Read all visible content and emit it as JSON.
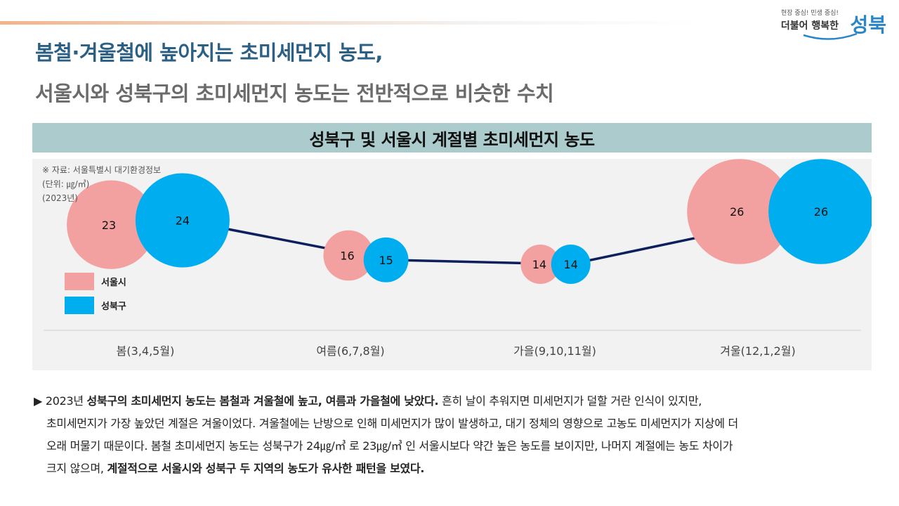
{
  "header": {
    "slogan": "현장 중심! 민생 중심!",
    "sub": "더불어 행복한",
    "logo": "성북",
    "headline1": "봄철·겨울철에 높아지는 초미세먼지 농도,",
    "headline2": "서울시와 성북구의 초미세먼지 농도는 전반적으로 비슷한 수치",
    "colors": {
      "headline1": "#2c5f84",
      "headline2": "#6b6b6b",
      "title_bar": "#abcbcc"
    }
  },
  "chart_title": "성북구 및 서울시 계절별 초미세먼지 농도",
  "source": {
    "line1": "※ 자료: 서울특별시 대기환경정보",
    "line2": "(단위: ㎍/㎥)",
    "line3": "(2023년)"
  },
  "chart_data": {
    "type": "scatter",
    "title": "성북구 및 서울시 계절별 초미세먼지 농도",
    "categories": [
      "봄(3,4,5월)",
      "여름(6,7,8월)",
      "가을(9,10,11월)",
      "겨울(12,1,2월)"
    ],
    "series": [
      {
        "name": "서울시",
        "values": [
          23,
          16,
          14,
          26
        ],
        "color": "#f2a0a0"
      },
      {
        "name": "성북구",
        "values": [
          24,
          15,
          14,
          26
        ],
        "color": "#00aeef"
      }
    ],
    "connector_color": "#0d1f5c",
    "legend": "left"
  },
  "body": {
    "l1_marker": "▶",
    "l1_a": "2023년 ",
    "l1_b": "성북구의 초미세먼지 농도는 봄철과 겨울철에 높고, 여름과 가을철에 낮았다.",
    "l1_c": "  흔히 날이 추워지면 미세먼지가 덜할 거란 인식이 있지만,",
    "l2": "초미세먼지가 가장 높았던 계절은 겨울이었다. 겨울철에는 난방으로 인해 미세먼지가 많이 발생하고, 대기 정체의 영향으로 고농도 미세먼지가 지상에 더",
    "l3": "오래 머물기 때문이다. 봄철 초미세먼지 농도는 성북구가 24㎍/㎥ 로 23㎍/㎥ 인 서울시보다 약간 높은 농도를 보이지만, 나머지 계절에는 농도 차이가",
    "l4_a": "크지 않으며, ",
    "l4_b": "계절적으로 서울시와 성북구 두 지역의 농도가 유사한 패턴을 보였다."
  }
}
